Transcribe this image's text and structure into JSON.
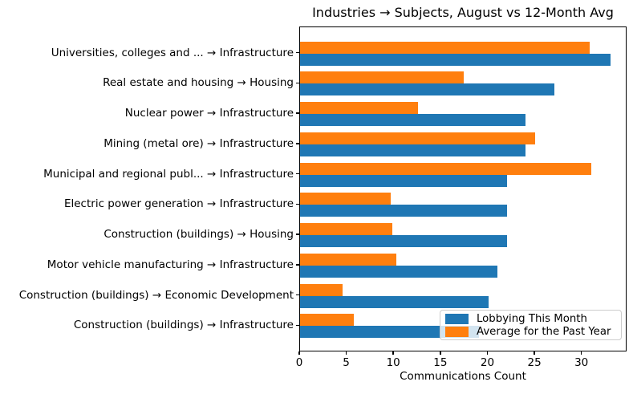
{
  "chart_data": {
    "type": "bar",
    "orientation": "horizontal",
    "title": "Industries → Subjects, August vs 12-Month Avg",
    "xlabel": "Communications Count",
    "ylabel": "",
    "categories": [
      "Universities, colleges and ... → Infrastructure",
      "Real estate and housing → Housing",
      "Nuclear power → Infrastructure",
      "Mining (metal ore) → Infrastructure",
      "Municipal and regional publ... → Infrastructure",
      "Electric power generation → Infrastructure",
      "Construction (buildings) → Housing",
      "Motor vehicle manufacturing → Infrastructure",
      "Construction (buildings) → Economic Development",
      "Construction (buildings) → Infrastructure"
    ],
    "series": [
      {
        "name": "Lobbying This Month",
        "color": "#1f77b4",
        "values": [
          33,
          27,
          24,
          24,
          22,
          22,
          22,
          21,
          20,
          19
        ]
      },
      {
        "name": "Average for the Past Year",
        "color": "#ff7f0e",
        "values": [
          30.8,
          17.4,
          12.5,
          25.0,
          31.0,
          9.6,
          9.8,
          10.2,
          4.5,
          5.7
        ]
      }
    ],
    "xticks": [
      0,
      5,
      10,
      15,
      20,
      25,
      30
    ],
    "xlim": [
      0,
      34.8
    ],
    "grid": false,
    "legend_position": "lower right",
    "colors": {
      "background": "#ffffff",
      "axis": "#000000",
      "legend_border": "#cccccc"
    }
  }
}
